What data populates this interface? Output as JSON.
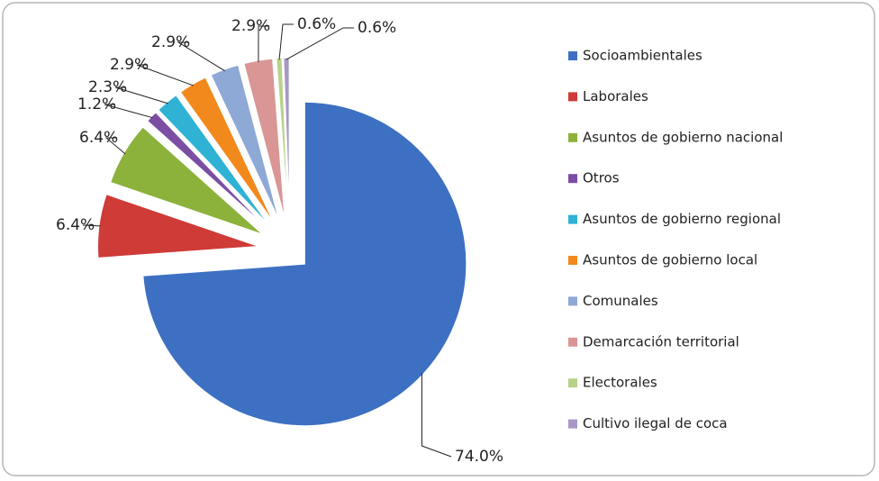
{
  "chart_data": {
    "type": "pie",
    "categories": [
      "Socioambientales",
      "Laborales",
      "Asuntos de gobierno nacional",
      "Otros",
      "Asuntos de gobierno regional",
      "Asuntos de gobierno local",
      "Comunales",
      "Demarcación territorial",
      "Electorales",
      "Cultivo ilegal de coca"
    ],
    "values": [
      74.0,
      6.4,
      6.4,
      1.2,
      2.3,
      2.9,
      2.9,
      2.9,
      0.6,
      0.6
    ],
    "value_labels": [
      "74.0%",
      "6.4%",
      "6.4%",
      "1.2%",
      "2.3%",
      "2.9%",
      "2.9%",
      "2.9%",
      "0.6%",
      "0.6%"
    ],
    "colors": [
      "#3d70c2",
      "#cf3b37",
      "#8cb23c",
      "#7b4ea3",
      "#2fb2d3",
      "#f2891c",
      "#8fa9d6",
      "#d99695",
      "#b8d28a",
      "#a798c6"
    ],
    "legend": "right"
  }
}
